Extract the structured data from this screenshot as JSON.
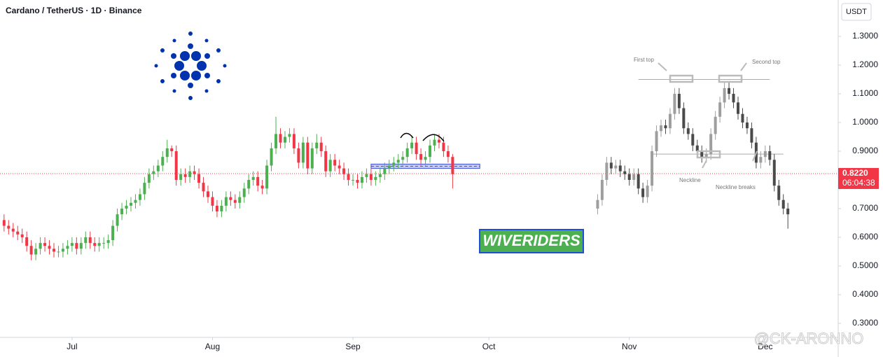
{
  "chart_data": {
    "type": "candlestick",
    "title": "Cardano / TetherUS · 1D · Binance",
    "y_label": "USDT",
    "watermark": "WIVERIDERS",
    "signature": "@CK-ARONNO",
    "ylim": [
      0.251,
      1.427
    ],
    "yticks": [
      {
        "value": 1.3,
        "label": "1.3000"
      },
      {
        "value": 1.2,
        "label": "1.2000"
      },
      {
        "value": 1.1,
        "label": "1.1000"
      },
      {
        "value": 1.0,
        "label": "1.0000"
      },
      {
        "value": 0.9,
        "label": "0.9000"
      },
      {
        "value": 0.8,
        "label": "0.8000"
      },
      {
        "value": 0.7,
        "label": "0.7000"
      },
      {
        "value": 0.6,
        "label": "0.6000"
      },
      {
        "value": 0.5,
        "label": "0.5000"
      },
      {
        "value": 0.4,
        "label": "0.4000"
      },
      {
        "value": 0.3,
        "label": "0.3000"
      }
    ],
    "xlim": [
      14.1,
      199.1
    ],
    "xticks": [
      {
        "value": 30,
        "label": "Jul"
      },
      {
        "value": 61,
        "label": "Aug"
      },
      {
        "value": 92,
        "label": "Sep"
      },
      {
        "value": 122,
        "label": "Oct"
      },
      {
        "value": 153,
        "label": "Nov"
      },
      {
        "value": 183,
        "label": "Dec"
      }
    ],
    "current_price": {
      "value": 0.822,
      "label": "0.8220"
    },
    "countdown": "06:04:38",
    "price_color": "#f23645",
    "zone": {
      "x": [
        96,
        120
      ],
      "y": [
        0.84,
        0.855
      ],
      "color": "#3f51d8"
    },
    "levels": [
      {
        "value": 1.15,
        "x": [
          155,
          184
        ]
      },
      {
        "value": 0.89,
        "x": [
          158,
          187
        ]
      }
    ],
    "annotations": [
      "First top",
      "Second top",
      "Neckline",
      "Neckline breaks"
    ],
    "series": [
      {
        "up_color": "#4caf50",
        "down_color": "#f23645",
        "x": [
          15,
          16,
          17,
          18,
          19,
          20,
          21,
          22,
          23,
          24,
          25,
          26,
          27,
          28,
          29,
          30,
          31,
          32,
          33,
          34,
          35,
          36,
          37,
          38,
          39,
          40,
          41,
          42,
          43,
          44,
          45,
          46,
          47,
          48,
          49,
          50,
          51,
          52,
          53,
          54,
          55,
          56,
          57,
          58,
          59,
          60,
          61,
          62,
          63,
          64,
          65,
          66,
          67,
          68,
          69,
          70,
          71,
          72,
          73,
          74,
          75,
          76,
          77,
          78,
          79,
          80,
          81,
          82,
          83,
          84,
          85,
          86,
          87,
          88,
          89,
          90,
          91,
          92,
          93,
          94,
          95,
          96,
          97,
          98,
          99,
          100,
          101,
          102,
          103,
          104,
          105,
          106,
          107,
          108,
          109,
          110,
          111,
          112,
          113,
          114
        ],
        "open": [
          0.66,
          0.64,
          0.63,
          0.62,
          0.61,
          0.6,
          0.57,
          0.54,
          0.56,
          0.58,
          0.57,
          0.56,
          0.55,
          0.55,
          0.56,
          0.57,
          0.58,
          0.56,
          0.58,
          0.6,
          0.58,
          0.57,
          0.58,
          0.58,
          0.59,
          0.64,
          0.68,
          0.7,
          0.71,
          0.72,
          0.73,
          0.75,
          0.79,
          0.82,
          0.83,
          0.85,
          0.88,
          0.91,
          0.9,
          0.8,
          0.82,
          0.81,
          0.83,
          0.82,
          0.79,
          0.76,
          0.74,
          0.71,
          0.69,
          0.71,
          0.74,
          0.73,
          0.72,
          0.74,
          0.77,
          0.8,
          0.81,
          0.78,
          0.77,
          0.85,
          0.91,
          0.96,
          0.93,
          0.95,
          0.96,
          0.91,
          0.86,
          0.93,
          0.84,
          0.91,
          0.93,
          0.9,
          0.83,
          0.87,
          0.85,
          0.84,
          0.82,
          0.8,
          0.8,
          0.79,
          0.81,
          0.82,
          0.8,
          0.81,
          0.82,
          0.84,
          0.85,
          0.86,
          0.87,
          0.88,
          0.91,
          0.93,
          0.89,
          0.87,
          0.88,
          0.92,
          0.94,
          0.93,
          0.9,
          0.88
        ],
        "high": [
          0.68,
          0.66,
          0.65,
          0.64,
          0.63,
          0.62,
          0.59,
          0.58,
          0.6,
          0.6,
          0.59,
          0.58,
          0.57,
          0.58,
          0.59,
          0.6,
          0.6,
          0.6,
          0.62,
          0.62,
          0.6,
          0.6,
          0.6,
          0.61,
          0.66,
          0.7,
          0.72,
          0.73,
          0.74,
          0.75,
          0.77,
          0.81,
          0.84,
          0.85,
          0.87,
          0.9,
          0.94,
          0.92,
          0.92,
          0.84,
          0.84,
          0.85,
          0.85,
          0.84,
          0.81,
          0.78,
          0.76,
          0.73,
          0.73,
          0.76,
          0.76,
          0.75,
          0.76,
          0.79,
          0.82,
          0.83,
          0.83,
          0.8,
          0.87,
          0.93,
          1.02,
          0.98,
          0.97,
          0.98,
          0.98,
          0.93,
          0.95,
          0.95,
          0.93,
          0.96,
          0.95,
          0.92,
          0.89,
          0.89,
          0.87,
          0.86,
          0.84,
          0.82,
          0.82,
          0.83,
          0.84,
          0.84,
          0.83,
          0.84,
          0.86,
          0.87,
          0.88,
          0.89,
          0.9,
          0.93,
          0.95,
          0.95,
          0.91,
          0.9,
          0.94,
          0.96,
          0.96,
          0.95,
          0.92,
          0.89
        ],
        "low": [
          0.62,
          0.61,
          0.6,
          0.59,
          0.58,
          0.55,
          0.52,
          0.52,
          0.54,
          0.55,
          0.54,
          0.53,
          0.53,
          0.53,
          0.54,
          0.55,
          0.54,
          0.54,
          0.56,
          0.56,
          0.55,
          0.55,
          0.56,
          0.56,
          0.57,
          0.62,
          0.66,
          0.68,
          0.69,
          0.7,
          0.71,
          0.73,
          0.77,
          0.8,
          0.81,
          0.83,
          0.86,
          0.88,
          0.78,
          0.78,
          0.79,
          0.79,
          0.8,
          0.77,
          0.74,
          0.72,
          0.69,
          0.67,
          0.67,
          0.69,
          0.71,
          0.7,
          0.7,
          0.72,
          0.75,
          0.78,
          0.76,
          0.75,
          0.75,
          0.83,
          0.89,
          0.91,
          0.91,
          0.93,
          0.89,
          0.84,
          0.84,
          0.82,
          0.82,
          0.89,
          0.88,
          0.81,
          0.81,
          0.83,
          0.82,
          0.8,
          0.78,
          0.78,
          0.77,
          0.77,
          0.79,
          0.78,
          0.78,
          0.79,
          0.8,
          0.82,
          0.83,
          0.84,
          0.85,
          0.86,
          0.89,
          0.87,
          0.85,
          0.85,
          0.86,
          0.9,
          0.91,
          0.88,
          0.86,
          0.77
        ],
        "close": [
          0.64,
          0.63,
          0.62,
          0.61,
          0.6,
          0.57,
          0.54,
          0.56,
          0.58,
          0.57,
          0.56,
          0.55,
          0.55,
          0.56,
          0.57,
          0.58,
          0.56,
          0.58,
          0.6,
          0.58,
          0.57,
          0.58,
          0.58,
          0.59,
          0.64,
          0.68,
          0.7,
          0.71,
          0.72,
          0.73,
          0.75,
          0.79,
          0.82,
          0.83,
          0.85,
          0.88,
          0.91,
          0.9,
          0.8,
          0.82,
          0.81,
          0.83,
          0.82,
          0.79,
          0.76,
          0.74,
          0.71,
          0.69,
          0.71,
          0.74,
          0.73,
          0.72,
          0.74,
          0.77,
          0.8,
          0.81,
          0.78,
          0.77,
          0.85,
          0.91,
          0.96,
          0.93,
          0.95,
          0.96,
          0.91,
          0.86,
          0.93,
          0.84,
          0.91,
          0.93,
          0.9,
          0.83,
          0.87,
          0.85,
          0.84,
          0.82,
          0.8,
          0.8,
          0.79,
          0.81,
          0.82,
          0.8,
          0.81,
          0.82,
          0.84,
          0.85,
          0.86,
          0.87,
          0.88,
          0.91,
          0.93,
          0.89,
          0.87,
          0.88,
          0.92,
          0.94,
          0.93,
          0.9,
          0.88,
          0.82
        ]
      },
      {
        "up_color": "#9e9e9e",
        "down_color": "#4a4a4a",
        "x": [
          146,
          147,
          148,
          149,
          150,
          151,
          152,
          153,
          154,
          155,
          156,
          157,
          158,
          159,
          160,
          161,
          162,
          163,
          164,
          165,
          166,
          167,
          168,
          169,
          170,
          171,
          172,
          173,
          174,
          175,
          176,
          177,
          178,
          179,
          180,
          181,
          182,
          183,
          184,
          185,
          186,
          187,
          188
        ],
        "open": [
          0.7,
          0.73,
          0.8,
          0.86,
          0.84,
          0.85,
          0.83,
          0.82,
          0.8,
          0.82,
          0.77,
          0.74,
          0.78,
          0.9,
          0.97,
          0.99,
          0.98,
          1.03,
          1.1,
          1.05,
          0.98,
          0.96,
          0.92,
          0.9,
          0.88,
          0.89,
          0.96,
          1.02,
          1.07,
          1.12,
          1.1,
          1.07,
          1.03,
          1.0,
          0.98,
          0.93,
          0.86,
          0.88,
          0.9,
          0.87,
          0.78,
          0.73,
          0.7
        ],
        "high": [
          0.75,
          0.82,
          0.88,
          0.88,
          0.87,
          0.87,
          0.85,
          0.84,
          0.84,
          0.84,
          0.79,
          0.8,
          0.92,
          0.99,
          1.01,
          1.01,
          1.05,
          1.12,
          1.12,
          1.07,
          1.0,
          0.98,
          0.94,
          0.92,
          0.91,
          0.98,
          1.04,
          1.09,
          1.14,
          1.14,
          1.12,
          1.09,
          1.05,
          1.02,
          1.0,
          0.95,
          0.9,
          0.92,
          0.92,
          0.89,
          0.8,
          0.75,
          0.72
        ],
        "low": [
          0.68,
          0.71,
          0.78,
          0.82,
          0.82,
          0.81,
          0.8,
          0.78,
          0.78,
          0.75,
          0.72,
          0.72,
          0.76,
          0.88,
          0.95,
          0.96,
          0.96,
          1.01,
          1.03,
          0.96,
          0.94,
          0.9,
          0.88,
          0.86,
          0.86,
          0.87,
          0.94,
          1.0,
          1.05,
          1.08,
          1.05,
          1.01,
          0.98,
          0.96,
          0.91,
          0.84,
          0.84,
          0.86,
          0.85,
          0.76,
          0.71,
          0.68,
          0.63
        ],
        "close": [
          0.73,
          0.8,
          0.86,
          0.84,
          0.85,
          0.83,
          0.82,
          0.8,
          0.82,
          0.77,
          0.74,
          0.78,
          0.9,
          0.97,
          0.99,
          0.98,
          1.03,
          1.1,
          1.05,
          0.98,
          0.96,
          0.92,
          0.9,
          0.88,
          0.89,
          0.96,
          1.02,
          1.07,
          1.12,
          1.1,
          1.07,
          1.03,
          1.0,
          0.98,
          0.93,
          0.86,
          0.88,
          0.9,
          0.87,
          0.78,
          0.73,
          0.7,
          0.68
        ]
      }
    ]
  }
}
